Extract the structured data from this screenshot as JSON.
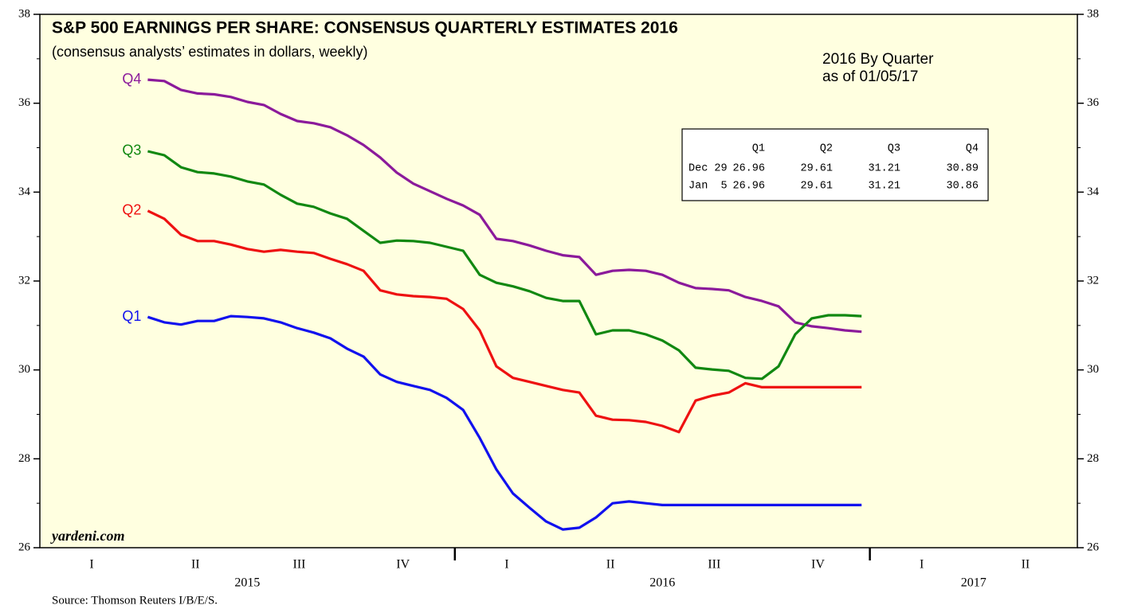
{
  "chart_data": {
    "type": "line",
    "title": "S&P 500 EARNINGS PER SHARE: CONSENSUS QUARTERLY ESTIMATES 2016",
    "subtitle": "(consensus analysts’ estimates in dollars, weekly)",
    "annotation": [
      "2016 By Quarter",
      "as of 01/05/17"
    ],
    "watermark": "yardeni.com",
    "source": "Source: Thomson Reuters I/B/E/S.",
    "xlim": [
      2015,
      2017.5
    ],
    "ylim": [
      26,
      38
    ],
    "yticks": [
      26,
      28,
      30,
      32,
      34,
      36,
      38
    ],
    "yminor": [
      27,
      29,
      31,
      33,
      35,
      37
    ],
    "xticks": [
      {
        "value": 2015.125,
        "label": "I"
      },
      {
        "value": 2015.375,
        "label": "II"
      },
      {
        "value": 2015.625,
        "label": "III"
      },
      {
        "value": 2015.875,
        "label": "IV"
      },
      {
        "value": 2016.125,
        "label": "I"
      },
      {
        "value": 2016.375,
        "label": "II"
      },
      {
        "value": 2016.625,
        "label": "III"
      },
      {
        "value": 2016.875,
        "label": "IV"
      },
      {
        "value": 2017.125,
        "label": "I"
      },
      {
        "value": 2017.375,
        "label": "II"
      }
    ],
    "year_labels": [
      {
        "value": 2015.5,
        "label": "2015"
      },
      {
        "value": 2016.5,
        "label": "2016"
      },
      {
        "value": 2017.25,
        "label": "2017"
      }
    ],
    "year_ticks": [
      2016,
      2017
    ],
    "x": [
      2015.26,
      2015.3,
      2015.34,
      2015.38,
      2015.42,
      2015.46,
      2015.5,
      2015.54,
      2015.58,
      2015.62,
      2015.66,
      2015.7,
      2015.74,
      2015.78,
      2015.82,
      2015.86,
      2015.9,
      2015.94,
      2015.98,
      2016.02,
      2016.06,
      2016.1,
      2016.14,
      2016.18,
      2016.22,
      2016.26,
      2016.3,
      2016.34,
      2016.38,
      2016.42,
      2016.46,
      2016.5,
      2016.54,
      2016.58,
      2016.62,
      2016.66,
      2016.7,
      2016.74,
      2016.78,
      2016.82,
      2016.86,
      2016.9,
      2016.94,
      2016.98
    ],
    "series": [
      {
        "name": "Q4",
        "color": "#8b1a9b",
        "values": [
          36.53,
          36.5,
          36.3,
          36.22,
          36.2,
          36.14,
          36.03,
          35.96,
          35.76,
          35.6,
          35.55,
          35.46,
          35.28,
          35.06,
          34.78,
          34.44,
          34.19,
          34.02,
          33.85,
          33.7,
          33.49,
          32.95,
          32.9,
          32.8,
          32.68,
          32.58,
          32.54,
          32.14,
          32.23,
          32.25,
          32.23,
          32.14,
          31.96,
          31.84,
          31.82,
          31.79,
          31.64,
          31.55,
          31.43,
          31.07,
          30.98,
          30.94,
          30.89,
          30.86
        ]
      },
      {
        "name": "Q3",
        "color": "#118811",
        "values": [
          34.92,
          34.83,
          34.56,
          34.45,
          34.42,
          34.35,
          34.24,
          34.17,
          33.94,
          33.74,
          33.67,
          33.52,
          33.4,
          33.13,
          32.86,
          32.91,
          32.9,
          32.86,
          32.77,
          32.68,
          32.14,
          31.96,
          31.88,
          31.77,
          31.62,
          31.55,
          31.55,
          30.8,
          30.89,
          30.89,
          30.8,
          30.66,
          30.44,
          30.05,
          30.01,
          29.98,
          29.82,
          29.8,
          30.08,
          30.8,
          31.16,
          31.23,
          31.23,
          31.21
        ]
      },
      {
        "name": "Q2",
        "color": "#ee1111",
        "values": [
          33.58,
          33.4,
          33.04,
          32.9,
          32.9,
          32.82,
          32.72,
          32.66,
          32.7,
          32.66,
          32.63,
          32.5,
          32.38,
          32.23,
          31.79,
          31.7,
          31.66,
          31.64,
          31.6,
          31.37,
          30.89,
          30.08,
          29.82,
          29.73,
          29.64,
          29.55,
          29.49,
          28.97,
          28.88,
          28.87,
          28.83,
          28.74,
          28.6,
          29.31,
          29.42,
          29.49,
          29.7,
          29.61,
          29.61,
          29.61,
          29.61,
          29.61,
          29.61,
          29.61
        ]
      },
      {
        "name": "Q1",
        "color": "#1111ee",
        "values": [
          31.19,
          31.07,
          31.02,
          31.1,
          31.1,
          31.21,
          31.19,
          31.16,
          31.07,
          30.94,
          30.84,
          30.71,
          30.48,
          30.3,
          29.9,
          29.73,
          29.64,
          29.55,
          29.37,
          29.1,
          28.47,
          27.76,
          27.22,
          26.9,
          26.59,
          26.41,
          26.45,
          26.68,
          27.0,
          27.04,
          27.0,
          26.96,
          26.96,
          26.96,
          26.96,
          26.96,
          26.96,
          26.96,
          26.96,
          26.96,
          26.96,
          26.96,
          26.96,
          26.96
        ]
      }
    ],
    "table": {
      "columns": [
        "Q1",
        "Q2",
        "Q3",
        "Q4"
      ],
      "rows": [
        {
          "label": "Dec 29",
          "values": [
            26.96,
            29.61,
            31.21,
            30.89
          ]
        },
        {
          "label": "Jan  5",
          "values": [
            26.96,
            29.61,
            31.21,
            30.86
          ]
        }
      ]
    }
  }
}
